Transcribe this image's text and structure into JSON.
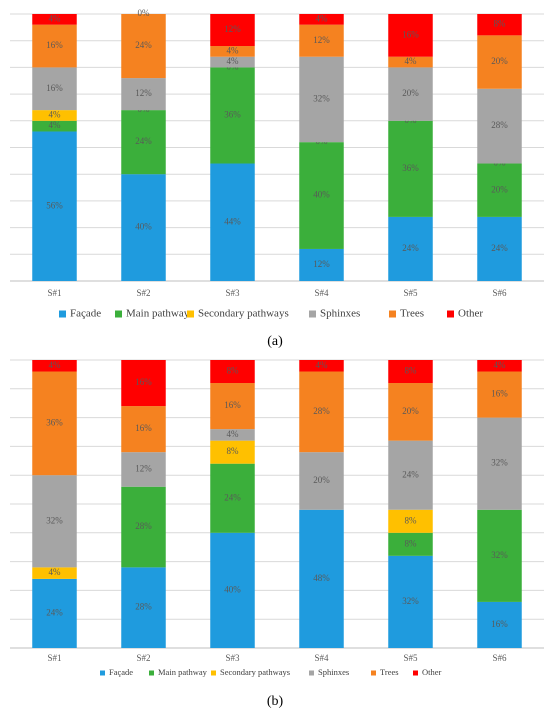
{
  "chart_data": [
    {
      "type": "bar",
      "stacked": true,
      "percent": true,
      "caption": "(a)",
      "categories": [
        "S#1",
        "S#2",
        "S#3",
        "S#4",
        "S#5",
        "S#6"
      ],
      "series": [
        {
          "name": "Façade",
          "color": "#1F9BDE",
          "values": [
            56,
            40,
            44,
            12,
            24,
            24
          ]
        },
        {
          "name": "Main pathway",
          "color": "#3BAF3B",
          "values": [
            4,
            24,
            36,
            40,
            36,
            20
          ]
        },
        {
          "name": "Secondary pathways",
          "color": "#FFC000",
          "values": [
            4,
            0,
            0,
            0,
            0,
            0
          ]
        },
        {
          "name": "Sphinxes",
          "color": "#A5A5A5",
          "values": [
            16,
            12,
            4,
            32,
            20,
            28
          ]
        },
        {
          "name": "Trees",
          "color": "#F58220",
          "values": [
            16,
            24,
            4,
            12,
            4,
            20
          ]
        },
        {
          "name": "Other",
          "color": "#FF0000",
          "values": [
            4,
            0,
            12,
            4,
            16,
            8
          ]
        }
      ],
      "ylim": [
        0,
        100
      ],
      "grid": true,
      "legend_position": "bottom"
    },
    {
      "type": "bar",
      "stacked": true,
      "percent": true,
      "caption": "(b)",
      "categories": [
        "S#1",
        "S#2",
        "S#3",
        "S#4",
        "S#5",
        "S#6"
      ],
      "series": [
        {
          "name": "Façade",
          "color": "#1F9BDE",
          "values": [
            24,
            28,
            40,
            48,
            32,
            16
          ]
        },
        {
          "name": "Main pathway",
          "color": "#3BAF3B",
          "values": [
            0,
            28,
            24,
            0,
            8,
            32
          ]
        },
        {
          "name": "Secondary pathways",
          "color": "#FFC000",
          "values": [
            4,
            0,
            8,
            0,
            8,
            0
          ]
        },
        {
          "name": "Sphinxes",
          "color": "#A5A5A5",
          "values": [
            32,
            12,
            4,
            20,
            24,
            32
          ]
        },
        {
          "name": "Trees",
          "color": "#F58220",
          "values": [
            36,
            16,
            16,
            28,
            20,
            16
          ]
        },
        {
          "name": "Other",
          "color": "#FF0000",
          "values": [
            4,
            16,
            8,
            4,
            8,
            4
          ]
        }
      ],
      "ylim": [
        0,
        100
      ],
      "grid": true,
      "legend_position": "bottom"
    }
  ]
}
